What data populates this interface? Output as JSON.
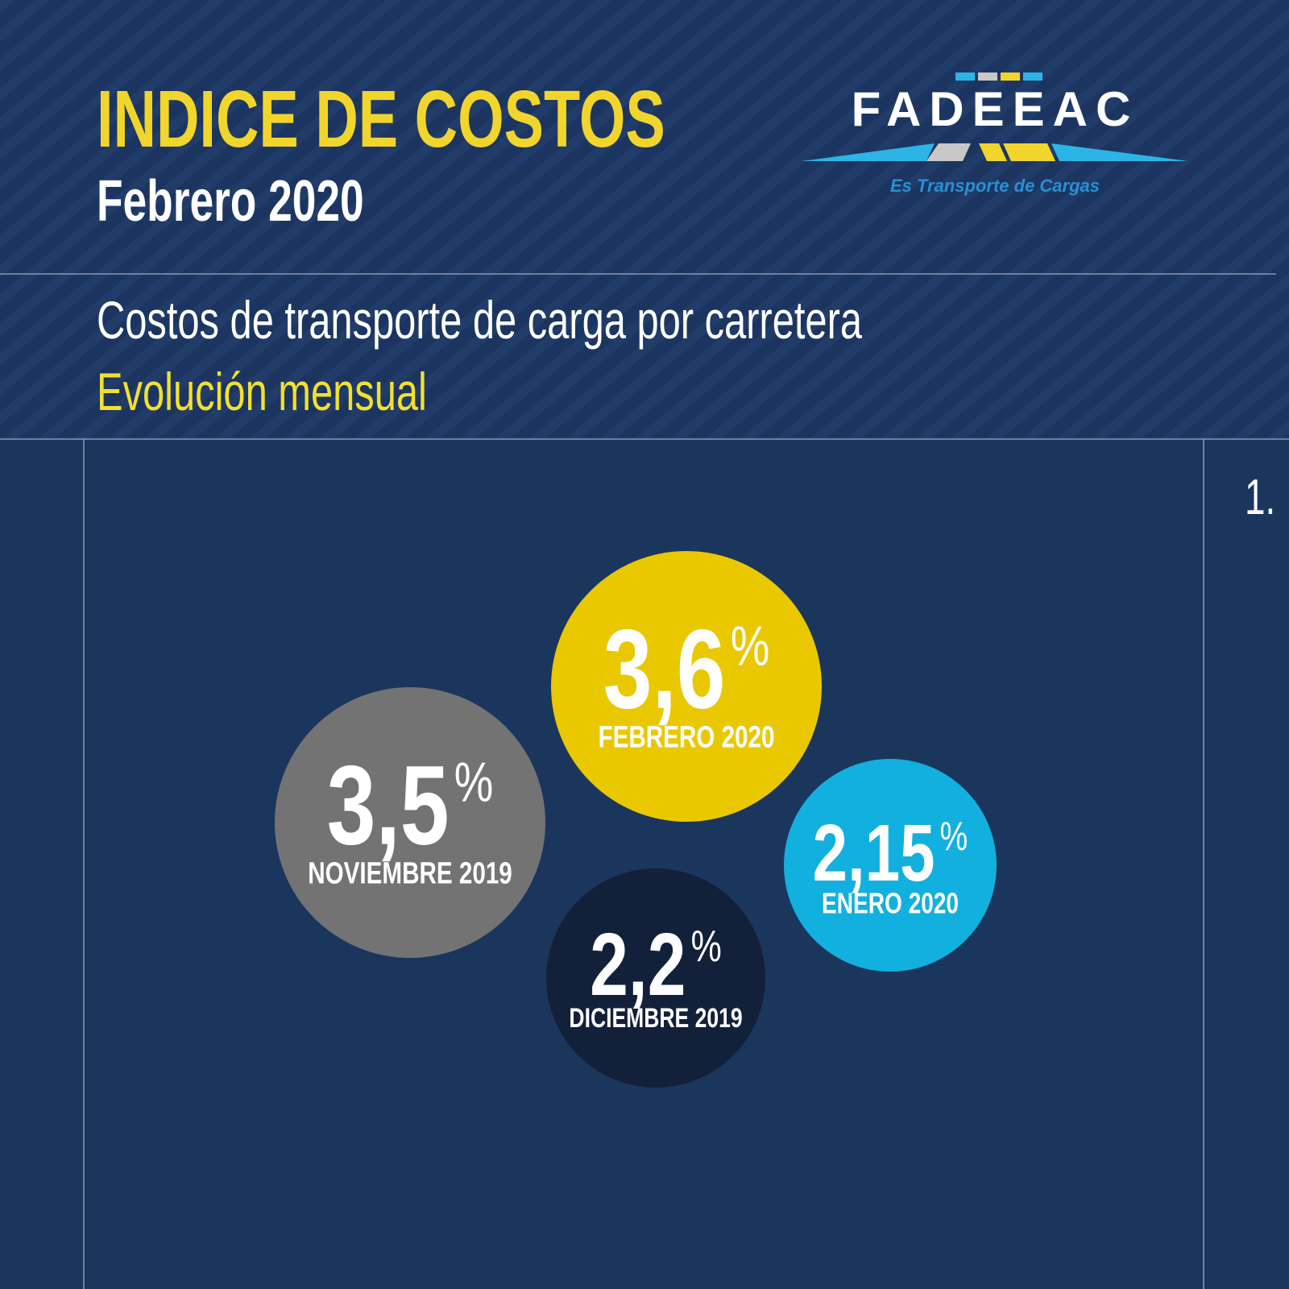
{
  "header": {
    "title": "INDICE DE COSTOS",
    "subtitle": "Febrero 2020"
  },
  "logo": {
    "name": "FADEEAC",
    "tagline": "Es Transporte de Cargas"
  },
  "section": {
    "title": "Costos de transporte de carga por carretera",
    "subtitle": "Evolución mensual"
  },
  "page_number": "1.",
  "items": [
    {
      "value": "3,6",
      "unit": "%",
      "label": "FEBRERO 2020"
    },
    {
      "value": "3,5",
      "unit": "%",
      "label": "NOVIEMBRE 2019"
    },
    {
      "value": "2,15",
      "unit": "%",
      "label": "ENERO 2020"
    },
    {
      "value": "2,2",
      "unit": "%",
      "label": "DICIEMBRE 2019"
    }
  ]
}
